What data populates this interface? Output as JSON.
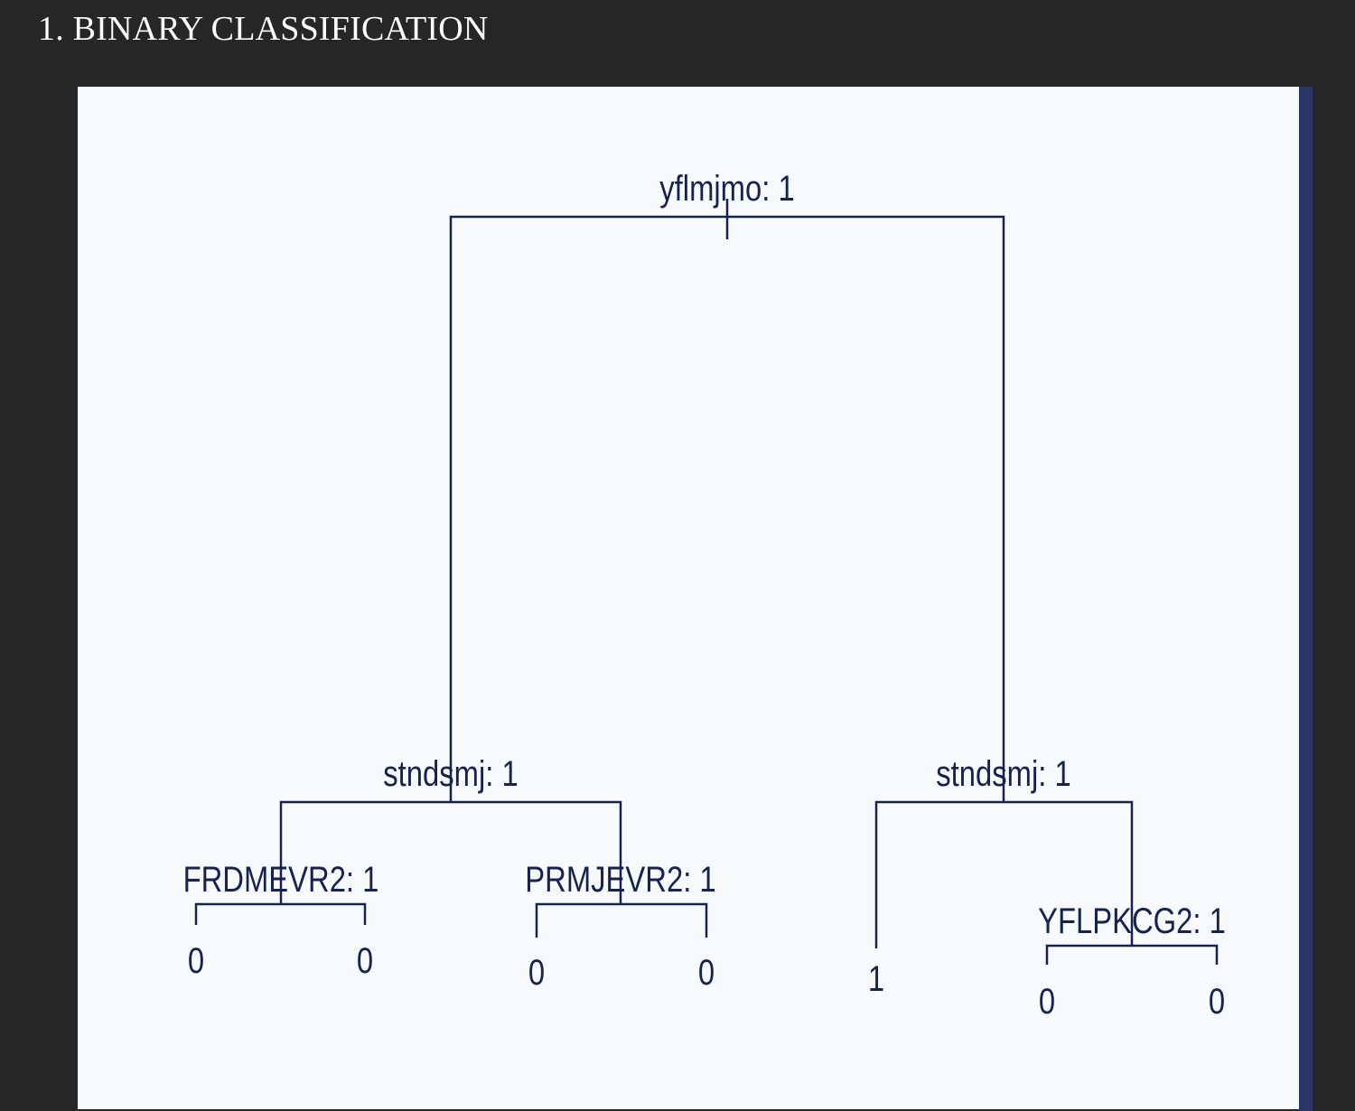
{
  "page": {
    "title": "1. BINARY CLASSIFICATION"
  },
  "tree": {
    "root_split": "yflmjmo: 1",
    "left_split": "stndsmj: 1",
    "right_split": "stndsmj: 1",
    "ll_split": "FRDMEVR2: 1",
    "lr_split": "PRMJEVR2: 1",
    "rr_split": "YFLPKCG2: 1",
    "leaf_ll_left": "0",
    "leaf_ll_right": "0",
    "leaf_lr_left": "0",
    "leaf_lr_right": "0",
    "leaf_rl": "1",
    "leaf_rr_left": "0",
    "leaf_rr_right": "0"
  },
  "colors": {
    "page_background": "#262626",
    "figure_background": "#f7fbfd",
    "tree_ink": "#17224f",
    "scroll_edge": "#2a3466"
  }
}
